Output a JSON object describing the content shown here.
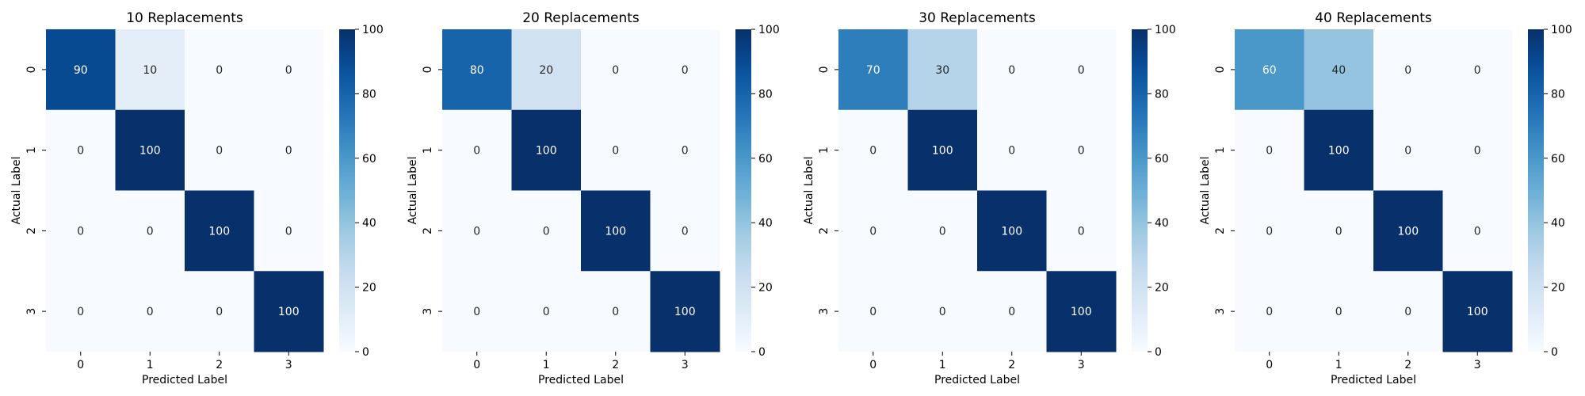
{
  "chart_data": [
    {
      "type": "heatmap",
      "title": "10 Replacements",
      "xlabel": "Predicted Label",
      "ylabel": "Actual Label",
      "x_categories": [
        "0",
        "1",
        "2",
        "3"
      ],
      "y_categories": [
        "0",
        "1",
        "2",
        "3"
      ],
      "values": [
        [
          90,
          10,
          0,
          0
        ],
        [
          0,
          100,
          0,
          0
        ],
        [
          0,
          0,
          100,
          0
        ],
        [
          0,
          0,
          0,
          100
        ]
      ],
      "colorbar": {
        "min": 0,
        "max": 100,
        "ticks": [
          0,
          20,
          40,
          60,
          80,
          100
        ]
      },
      "colormap": "Blues"
    },
    {
      "type": "heatmap",
      "title": "20 Replacements",
      "xlabel": "Predicted Label",
      "ylabel": "Actual Label",
      "x_categories": [
        "0",
        "1",
        "2",
        "3"
      ],
      "y_categories": [
        "0",
        "1",
        "2",
        "3"
      ],
      "values": [
        [
          80,
          20,
          0,
          0
        ],
        [
          0,
          100,
          0,
          0
        ],
        [
          0,
          0,
          100,
          0
        ],
        [
          0,
          0,
          0,
          100
        ]
      ],
      "colorbar": {
        "min": 0,
        "max": 100,
        "ticks": [
          0,
          20,
          40,
          60,
          80,
          100
        ]
      },
      "colormap": "Blues"
    },
    {
      "type": "heatmap",
      "title": "30 Replacements",
      "xlabel": "Predicted Label",
      "ylabel": "Actual Label",
      "x_categories": [
        "0",
        "1",
        "2",
        "3"
      ],
      "y_categories": [
        "0",
        "1",
        "2",
        "3"
      ],
      "values": [
        [
          70,
          30,
          0,
          0
        ],
        [
          0,
          100,
          0,
          0
        ],
        [
          0,
          0,
          100,
          0
        ],
        [
          0,
          0,
          0,
          100
        ]
      ],
      "colorbar": {
        "min": 0,
        "max": 100,
        "ticks": [
          0,
          20,
          40,
          60,
          80,
          100
        ]
      },
      "colormap": "Blues"
    },
    {
      "type": "heatmap",
      "title": "40 Replacements",
      "xlabel": "Predicted Label",
      "ylabel": "Actual Label",
      "x_categories": [
        "0",
        "1",
        "2",
        "3"
      ],
      "y_categories": [
        "0",
        "1",
        "2",
        "3"
      ],
      "values": [
        [
          60,
          40,
          0,
          0
        ],
        [
          0,
          100,
          0,
          0
        ],
        [
          0,
          0,
          100,
          0
        ],
        [
          0,
          0,
          0,
          100
        ]
      ],
      "colorbar": {
        "min": 0,
        "max": 100,
        "ticks": [
          0,
          20,
          40,
          60,
          80,
          100
        ]
      },
      "colormap": "Blues"
    }
  ]
}
